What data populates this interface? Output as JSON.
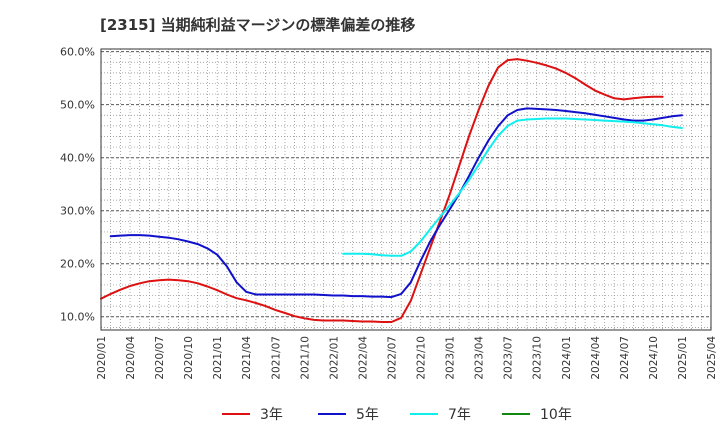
{
  "chart_data": {
    "type": "line",
    "title": "[2315]  当期純利益マージンの標準偏差の推移",
    "xlabel": "",
    "ylabel": "",
    "ylim": [
      7.5,
      60.5
    ],
    "yticks": [
      10,
      20,
      30,
      40,
      50,
      60
    ],
    "ytick_labels": [
      "10.0%",
      "20.0%",
      "30.0%",
      "40.0%",
      "50.0%",
      "60.0%"
    ],
    "x_range": [
      "2020-01",
      "2025-04"
    ],
    "xtick_labels": [
      "2020/01",
      "2020/04",
      "2020/07",
      "2020/10",
      "2021/01",
      "2021/04",
      "2021/07",
      "2021/10",
      "2022/01",
      "2022/04",
      "2022/07",
      "2022/10",
      "2023/01",
      "2023/04",
      "2023/07",
      "2023/10",
      "2024/01",
      "2024/04",
      "2024/07",
      "2024/10",
      "2025/01",
      "2025/04"
    ],
    "grid": true,
    "legend_position": "bottom",
    "series": [
      {
        "name": "3年",
        "color": "#dd1111",
        "x": [
          "2020-01",
          "2020-02",
          "2020-03",
          "2020-04",
          "2020-05",
          "2020-06",
          "2020-07",
          "2020-08",
          "2020-09",
          "2020-10",
          "2020-11",
          "2020-12",
          "2021-01",
          "2021-02",
          "2021-03",
          "2021-04",
          "2021-05",
          "2021-06",
          "2021-07",
          "2021-08",
          "2021-09",
          "2021-10",
          "2021-11",
          "2021-12",
          "2022-01",
          "2022-02",
          "2022-03",
          "2022-04",
          "2022-05",
          "2022-06",
          "2022-07",
          "2022-08",
          "2022-09",
          "2022-10",
          "2022-11",
          "2022-12",
          "2023-01",
          "2023-02",
          "2023-03",
          "2023-04",
          "2023-05",
          "2023-06",
          "2023-07",
          "2023-08",
          "2023-09",
          "2023-10",
          "2023-11",
          "2023-12",
          "2024-01",
          "2024-02",
          "2024-03",
          "2024-04",
          "2024-05",
          "2024-06",
          "2024-07",
          "2024-08",
          "2024-09",
          "2024-10",
          "2024-11",
          "2024-12",
          "2025-01"
        ],
        "values": [
          13.4,
          14.3,
          15.1,
          15.8,
          16.3,
          16.7,
          16.9,
          17.0,
          16.9,
          16.7,
          16.3,
          15.7,
          15.0,
          14.2,
          13.5,
          13.1,
          12.6,
          12.0,
          11.3,
          10.7,
          10.1,
          9.7,
          9.4,
          9.3,
          9.3,
          9.3,
          9.2,
          9.1,
          9.1,
          9.0,
          9.0,
          9.8,
          13.0,
          18.0,
          23.0,
          28.0,
          33.0,
          38.5,
          44.0,
          49.0,
          53.5,
          57.0,
          58.4,
          58.6,
          58.3,
          57.9,
          57.4,
          56.8,
          56.0,
          55.0,
          53.8,
          52.7,
          51.9,
          51.2,
          51.0,
          51.2,
          51.4,
          51.5,
          51.5,
          null,
          null
        ]
      },
      {
        "name": "5年",
        "color": "#1111cc",
        "x": [
          "2020-01",
          "2020-02",
          "2020-03",
          "2020-04",
          "2020-05",
          "2020-06",
          "2020-07",
          "2020-08",
          "2020-09",
          "2020-10",
          "2020-11",
          "2020-12",
          "2021-01",
          "2021-02",
          "2021-03",
          "2021-04",
          "2021-05",
          "2021-06",
          "2021-07",
          "2021-08",
          "2021-09",
          "2021-10",
          "2021-11",
          "2021-12",
          "2022-01",
          "2022-02",
          "2022-03",
          "2022-04",
          "2022-05",
          "2022-06",
          "2022-07",
          "2022-08",
          "2022-09",
          "2022-10",
          "2022-11",
          "2022-12",
          "2023-01",
          "2023-02",
          "2023-03",
          "2023-04",
          "2023-05",
          "2023-06",
          "2023-07",
          "2023-08",
          "2023-09",
          "2023-10",
          "2023-11",
          "2023-12",
          "2024-01",
          "2024-02",
          "2024-03",
          "2024-04",
          "2024-05",
          "2024-06",
          "2024-07",
          "2024-08",
          "2024-09",
          "2024-10",
          "2024-11",
          "2024-12",
          "2025-01"
        ],
        "values": [
          null,
          25.2,
          25.3,
          25.4,
          25.4,
          25.3,
          25.1,
          24.9,
          24.6,
          24.2,
          23.7,
          22.9,
          21.7,
          19.5,
          16.5,
          14.7,
          14.2,
          14.2,
          14.2,
          14.2,
          14.2,
          14.2,
          14.2,
          14.1,
          14.0,
          14.0,
          13.9,
          13.9,
          13.8,
          13.8,
          13.7,
          14.3,
          16.5,
          20.5,
          24.2,
          27.3,
          30.2,
          33.2,
          36.5,
          40.0,
          43.2,
          45.9,
          48.0,
          49.0,
          49.3,
          49.2,
          49.1,
          49.0,
          48.8,
          48.6,
          48.4,
          48.1,
          47.8,
          47.5,
          47.2,
          47.0,
          47.0,
          47.2,
          47.5,
          47.8,
          48.0
        ]
      },
      {
        "name": "7年",
        "color": "#11eeee",
        "x": [
          "2020-01",
          "2020-02",
          "2020-03",
          "2020-04",
          "2020-05",
          "2020-06",
          "2020-07",
          "2020-08",
          "2020-09",
          "2020-10",
          "2020-11",
          "2020-12",
          "2021-01",
          "2021-02",
          "2021-03",
          "2021-04",
          "2021-05",
          "2021-06",
          "2021-07",
          "2021-08",
          "2021-09",
          "2021-10",
          "2021-11",
          "2021-12",
          "2022-01",
          "2022-02",
          "2022-03",
          "2022-04",
          "2022-05",
          "2022-06",
          "2022-07",
          "2022-08",
          "2022-09",
          "2022-10",
          "2022-11",
          "2022-12",
          "2023-01",
          "2023-02",
          "2023-03",
          "2023-04",
          "2023-05",
          "2023-06",
          "2023-07",
          "2023-08",
          "2023-09",
          "2023-10",
          "2023-11",
          "2023-12",
          "2024-01",
          "2024-02",
          "2024-03",
          "2024-04",
          "2024-05",
          "2024-06",
          "2024-07",
          "2024-08",
          "2024-09",
          "2024-10",
          "2024-11",
          "2024-12",
          "2025-01"
        ],
        "values": [
          null,
          null,
          null,
          null,
          null,
          null,
          null,
          null,
          null,
          null,
          null,
          null,
          null,
          null,
          null,
          null,
          null,
          null,
          null,
          null,
          null,
          null,
          null,
          null,
          null,
          21.9,
          21.9,
          21.9,
          21.8,
          21.6,
          21.5,
          21.5,
          22.3,
          24.2,
          26.5,
          28.8,
          31.0,
          33.3,
          35.8,
          38.6,
          41.5,
          44.1,
          46.0,
          47.0,
          47.2,
          47.3,
          47.4,
          47.4,
          47.4,
          47.3,
          47.2,
          47.1,
          47.0,
          46.9,
          46.8,
          46.7,
          46.5,
          46.3,
          46.1,
          45.8,
          45.6
        ]
      },
      {
        "name": "10年",
        "color": "#118811",
        "x": [],
        "values": []
      }
    ]
  }
}
